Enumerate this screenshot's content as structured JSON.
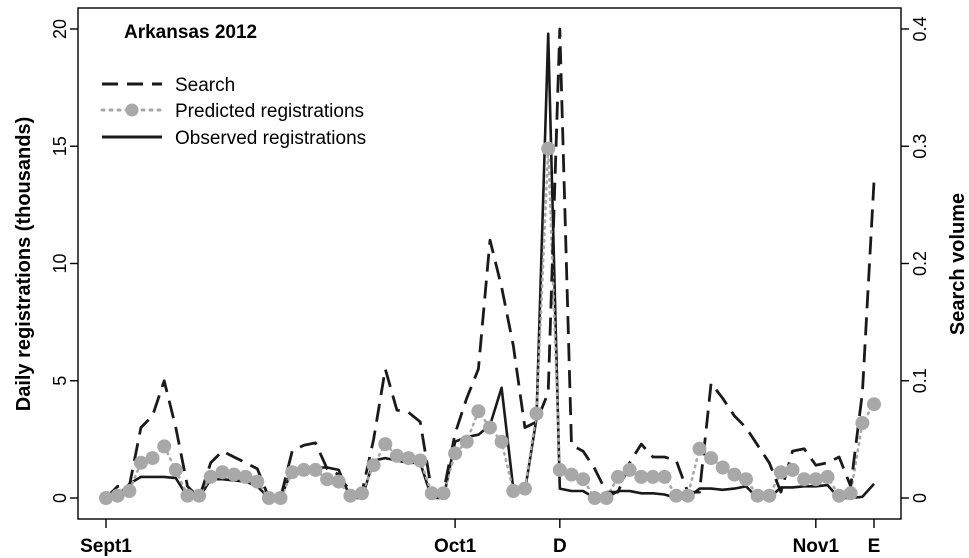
{
  "chart_data": {
    "type": "line",
    "title": "Arkansas 2012",
    "ylabel_left": "Daily registrations (thousands)",
    "ylabel_right": "Search volume",
    "xlabel": "",
    "x_tick_labels": [
      {
        "day": 0,
        "label": "Sept1"
      },
      {
        "day": 30,
        "label": "Oct1"
      },
      {
        "day": 39,
        "label": "D"
      },
      {
        "day": 61,
        "label": "Nov1"
      },
      {
        "day": 66,
        "label": "E"
      }
    ],
    "ylim_left": [
      0,
      20
    ],
    "ylim_right": [
      0,
      0.4
    ],
    "yticks_left": [
      0,
      5,
      10,
      15,
      20
    ],
    "yticks_right": [
      0,
      0.1,
      0.2,
      0.3,
      0.4
    ],
    "ytick_labels_right": [
      "0",
      "0.1",
      "0.2",
      "0.3",
      "0.4"
    ],
    "grid": false,
    "legend_position": "top-left",
    "colors": {
      "search": "#1a1a1a",
      "predicted": "#a8a8a8",
      "observed": "#1a1a1a"
    },
    "series": [
      {
        "name": "Search",
        "axis": "right",
        "style": "dashed",
        "x": [
          0,
          1,
          2,
          3,
          4,
          5,
          6,
          7,
          8,
          9,
          10,
          11,
          12,
          13,
          14,
          15,
          16,
          17,
          18,
          19,
          20,
          21,
          22,
          23,
          24,
          25,
          26,
          27,
          28,
          29,
          30,
          31,
          32,
          33,
          34,
          35,
          36,
          37,
          38,
          39,
          40,
          41,
          42,
          43,
          44,
          45,
          46,
          47,
          48,
          49,
          50,
          51,
          52,
          53,
          54,
          55,
          56,
          57,
          58,
          59,
          60,
          61,
          62,
          63,
          64,
          65,
          66
        ],
        "values": [
          0,
          0.01,
          0.01,
          0.06,
          0.07,
          0.1,
          0.06,
          0.01,
          0,
          0.03,
          0.04,
          0.035,
          0.03,
          0.025,
          0,
          0,
          0.04,
          0.045,
          0.047,
          0.025,
          0.02,
          0.005,
          0.005,
          0.05,
          0.11,
          0.075,
          0.073,
          0.065,
          0.005,
          0.005,
          0.055,
          0.085,
          0.11,
          0.22,
          0.18,
          0.13,
          0.06,
          0.065,
          0.09,
          0.4,
          0.045,
          0.04,
          0.025,
          0.005,
          0.005,
          0.03,
          0.046,
          0.035,
          0.035,
          0.032,
          0.005,
          0.005,
          0.098,
          0.085,
          0.07,
          0.06,
          0.045,
          0.03,
          0.005,
          0.04,
          0.042,
          0.028,
          0.03,
          0.035,
          0.01,
          0.09,
          0.27
        ]
      },
      {
        "name": "Predicted registrations",
        "axis": "left",
        "style": "dotted-points",
        "x": [
          0,
          1,
          2,
          3,
          4,
          5,
          6,
          7,
          8,
          9,
          10,
          11,
          12,
          13,
          14,
          15,
          16,
          17,
          18,
          19,
          20,
          21,
          22,
          23,
          24,
          25,
          26,
          27,
          28,
          29,
          30,
          31,
          32,
          33,
          34,
          35,
          36,
          37,
          38,
          39,
          40,
          41,
          42,
          43,
          44,
          45,
          46,
          47,
          48,
          49,
          50,
          51,
          52,
          53,
          54,
          55,
          56,
          57,
          58,
          59,
          60,
          61,
          62,
          63,
          64,
          65,
          66
        ],
        "values": [
          0,
          0.1,
          0.3,
          1.5,
          1.7,
          2.2,
          1.2,
          0.1,
          0.1,
          0.9,
          1.1,
          1,
          0.9,
          0.7,
          0,
          0,
          1.1,
          1.2,
          1.2,
          0.8,
          0.7,
          0.1,
          0.2,
          1.4,
          2.3,
          1.8,
          1.7,
          1.6,
          0.2,
          0.2,
          1.9,
          2.4,
          3.7,
          3,
          2.4,
          0.3,
          0.4,
          3.6,
          14.9,
          1.2,
          1,
          0.8,
          0,
          0,
          0.9,
          1.2,
          0.9,
          0.9,
          0.9,
          0.1,
          0.1,
          2.1,
          1.7,
          1.3,
          1,
          0.8,
          0.1,
          0.1,
          1.1,
          1.2,
          0.8,
          0.8,
          0.9,
          0.1,
          0.2,
          3.2,
          4
        ]
      },
      {
        "name": "Observed registrations",
        "axis": "left",
        "style": "solid",
        "x": [
          0,
          1,
          2,
          3,
          4,
          5,
          6,
          7,
          8,
          9,
          10,
          11,
          12,
          13,
          14,
          15,
          16,
          17,
          18,
          19,
          20,
          21,
          22,
          23,
          24,
          25,
          26,
          27,
          28,
          29,
          30,
          31,
          32,
          33,
          34,
          35,
          36,
          37,
          38,
          39,
          40,
          41,
          42,
          43,
          44,
          45,
          46,
          47,
          48,
          49,
          50,
          51,
          52,
          53,
          54,
          55,
          56,
          57,
          58,
          59,
          60,
          61,
          62,
          63,
          64,
          65,
          66
        ],
        "values": [
          0,
          0.1,
          0.6,
          0.9,
          0.9,
          0.9,
          0.85,
          0.05,
          0,
          0.8,
          0.8,
          0.75,
          0.7,
          0.5,
          0,
          0,
          1.2,
          1.2,
          1.3,
          1.3,
          1.2,
          0,
          0,
          1.6,
          1.7,
          1.6,
          1.5,
          1.5,
          0,
          0,
          2.4,
          2.6,
          2.7,
          3.1,
          4.7,
          0.4,
          0.3,
          3.4,
          19.8,
          0.4,
          0.3,
          0.3,
          0,
          0,
          0.3,
          0.3,
          0.2,
          0.2,
          0.15,
          0,
          0,
          0.4,
          0.4,
          0.35,
          0.4,
          0.5,
          0,
          0,
          0.45,
          0.45,
          0.5,
          0.5,
          0.55,
          0,
          0,
          0.05,
          0.6
        ]
      }
    ]
  }
}
